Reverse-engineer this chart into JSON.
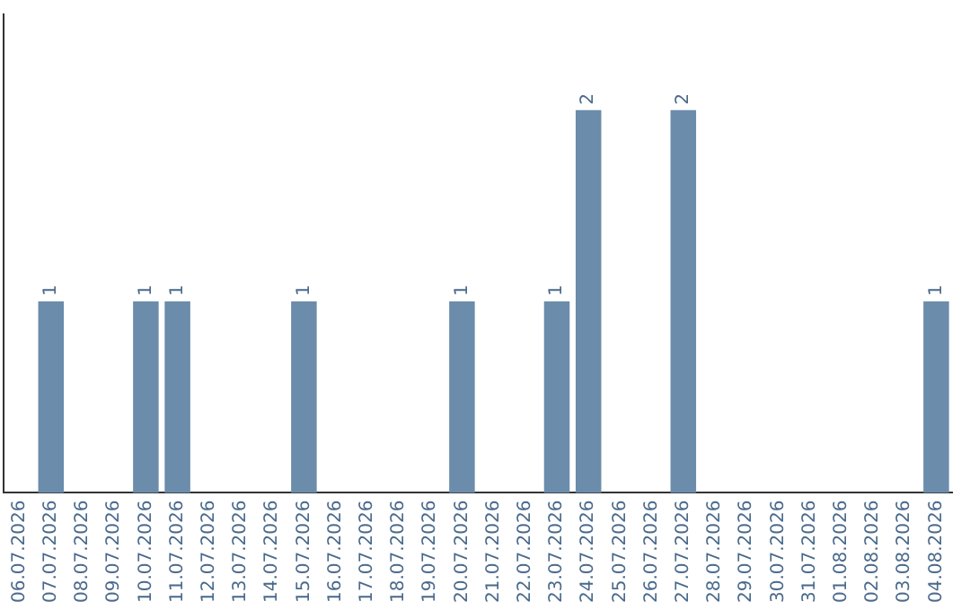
{
  "chart_data": {
    "type": "bar",
    "categories": [
      "06.07.2026",
      "07.07.2026",
      "08.07.2026",
      "09.07.2026",
      "10.07.2026",
      "11.07.2026",
      "12.07.2026",
      "13.07.2026",
      "14.07.2026",
      "15.07.2026",
      "16.07.2026",
      "17.07.2026",
      "18.07.2026",
      "19.07.2026",
      "20.07.2026",
      "21.07.2026",
      "22.07.2026",
      "23.07.2026",
      "24.07.2026",
      "25.07.2026",
      "26.07.2026",
      "27.07.2026",
      "28.07.2026",
      "29.07.2026",
      "30.07.2026",
      "31.07.2026",
      "01.08.2026",
      "02.08.2026",
      "03.08.2026",
      "04.08.2026"
    ],
    "values": [
      0,
      1,
      0,
      0,
      1,
      1,
      0,
      0,
      0,
      1,
      0,
      0,
      0,
      0,
      1,
      0,
      0,
      1,
      2,
      0,
      0,
      2,
      0,
      0,
      0,
      0,
      0,
      0,
      0,
      1
    ],
    "value_labels": [
      null,
      "1",
      null,
      null,
      "1",
      "1",
      null,
      null,
      null,
      "1",
      null,
      null,
      null,
      null,
      "1",
      null,
      null,
      "1",
      "2",
      null,
      null,
      "2",
      null,
      null,
      null,
      null,
      null,
      null,
      null,
      "1"
    ],
    "color": "#6b8cab",
    "grid": false,
    "legend": false,
    "tick_labels": "x"
  }
}
